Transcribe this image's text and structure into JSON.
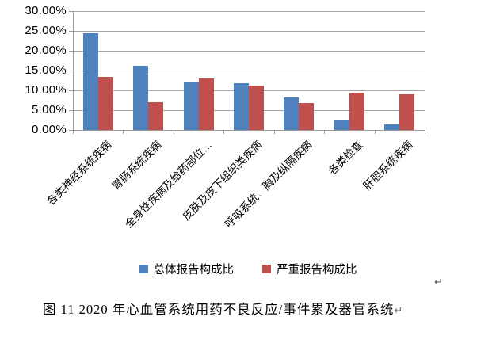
{
  "chart_data": {
    "type": "bar",
    "categories": [
      "各类神经系统疾病",
      "胃肠系统疾病",
      "全身性疾病及给药部位…",
      "皮肤及皮下组织类疾病",
      "呼吸系统、胸及纵隔疾病",
      "各类检查",
      "肝胆系统疾病"
    ],
    "series": [
      {
        "name": "总体报告构成比",
        "color": "#4F81BD",
        "values": [
          24.5,
          16.3,
          12.1,
          11.9,
          8.2,
          2.4,
          1.5
        ]
      },
      {
        "name": "严重报告构成比",
        "color": "#C0504D",
        "values": [
          13.5,
          7.0,
          13.0,
          11.2,
          6.9,
          9.4,
          9.0
        ]
      }
    ],
    "ylim": [
      0,
      30
    ],
    "ytick_step": 5,
    "ytick_labels": [
      "0.00%",
      "5.00%",
      "10.00%",
      "15.00%",
      "20.00%",
      "25.00%",
      "30.00%"
    ],
    "grid": true,
    "legend_position": "bottom",
    "title": ""
  },
  "caption": {
    "text": "图 11  2020 年心血管系统用药不良反应/事件累及器官系统",
    "return_mark": "↵"
  },
  "paragraph_mark": "↵"
}
